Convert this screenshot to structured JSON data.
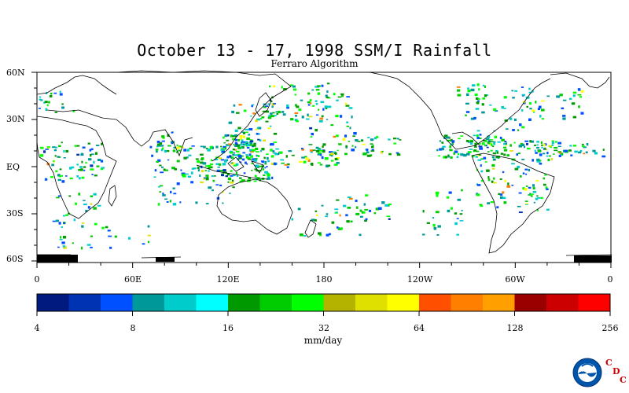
{
  "title": "October 13 - 17, 1998 SSM/I Rainfall",
  "subtitle": "Ferraro Algorithm",
  "lat_labels": [
    "60N",
    "30N",
    "EQ",
    "30S",
    "60S"
  ],
  "lon_labels": [
    "0",
    "60E",
    "120E",
    "180",
    "120W",
    "60W",
    "0"
  ],
  "colorbar": {
    "colors": [
      "#001a80",
      "#0033b3",
      "#0050ff",
      "#00999a",
      "#00cccc",
      "#00ffff",
      "#009900",
      "#00cc00",
      "#00ff00",
      "#b3b300",
      "#e0e000",
      "#ffff00",
      "#ff5000",
      "#ff8000",
      "#ffa000",
      "#990000",
      "#cc0000",
      "#ff0000"
    ],
    "tick_labels": [
      "4",
      "8",
      "16",
      "32",
      "64",
      "128",
      "256"
    ],
    "units": "mm/day"
  },
  "logo": {
    "text": "NOAA",
    "icon": "noaa-logo-icon",
    "cdc_letters": [
      "C",
      "D",
      "C"
    ]
  }
}
